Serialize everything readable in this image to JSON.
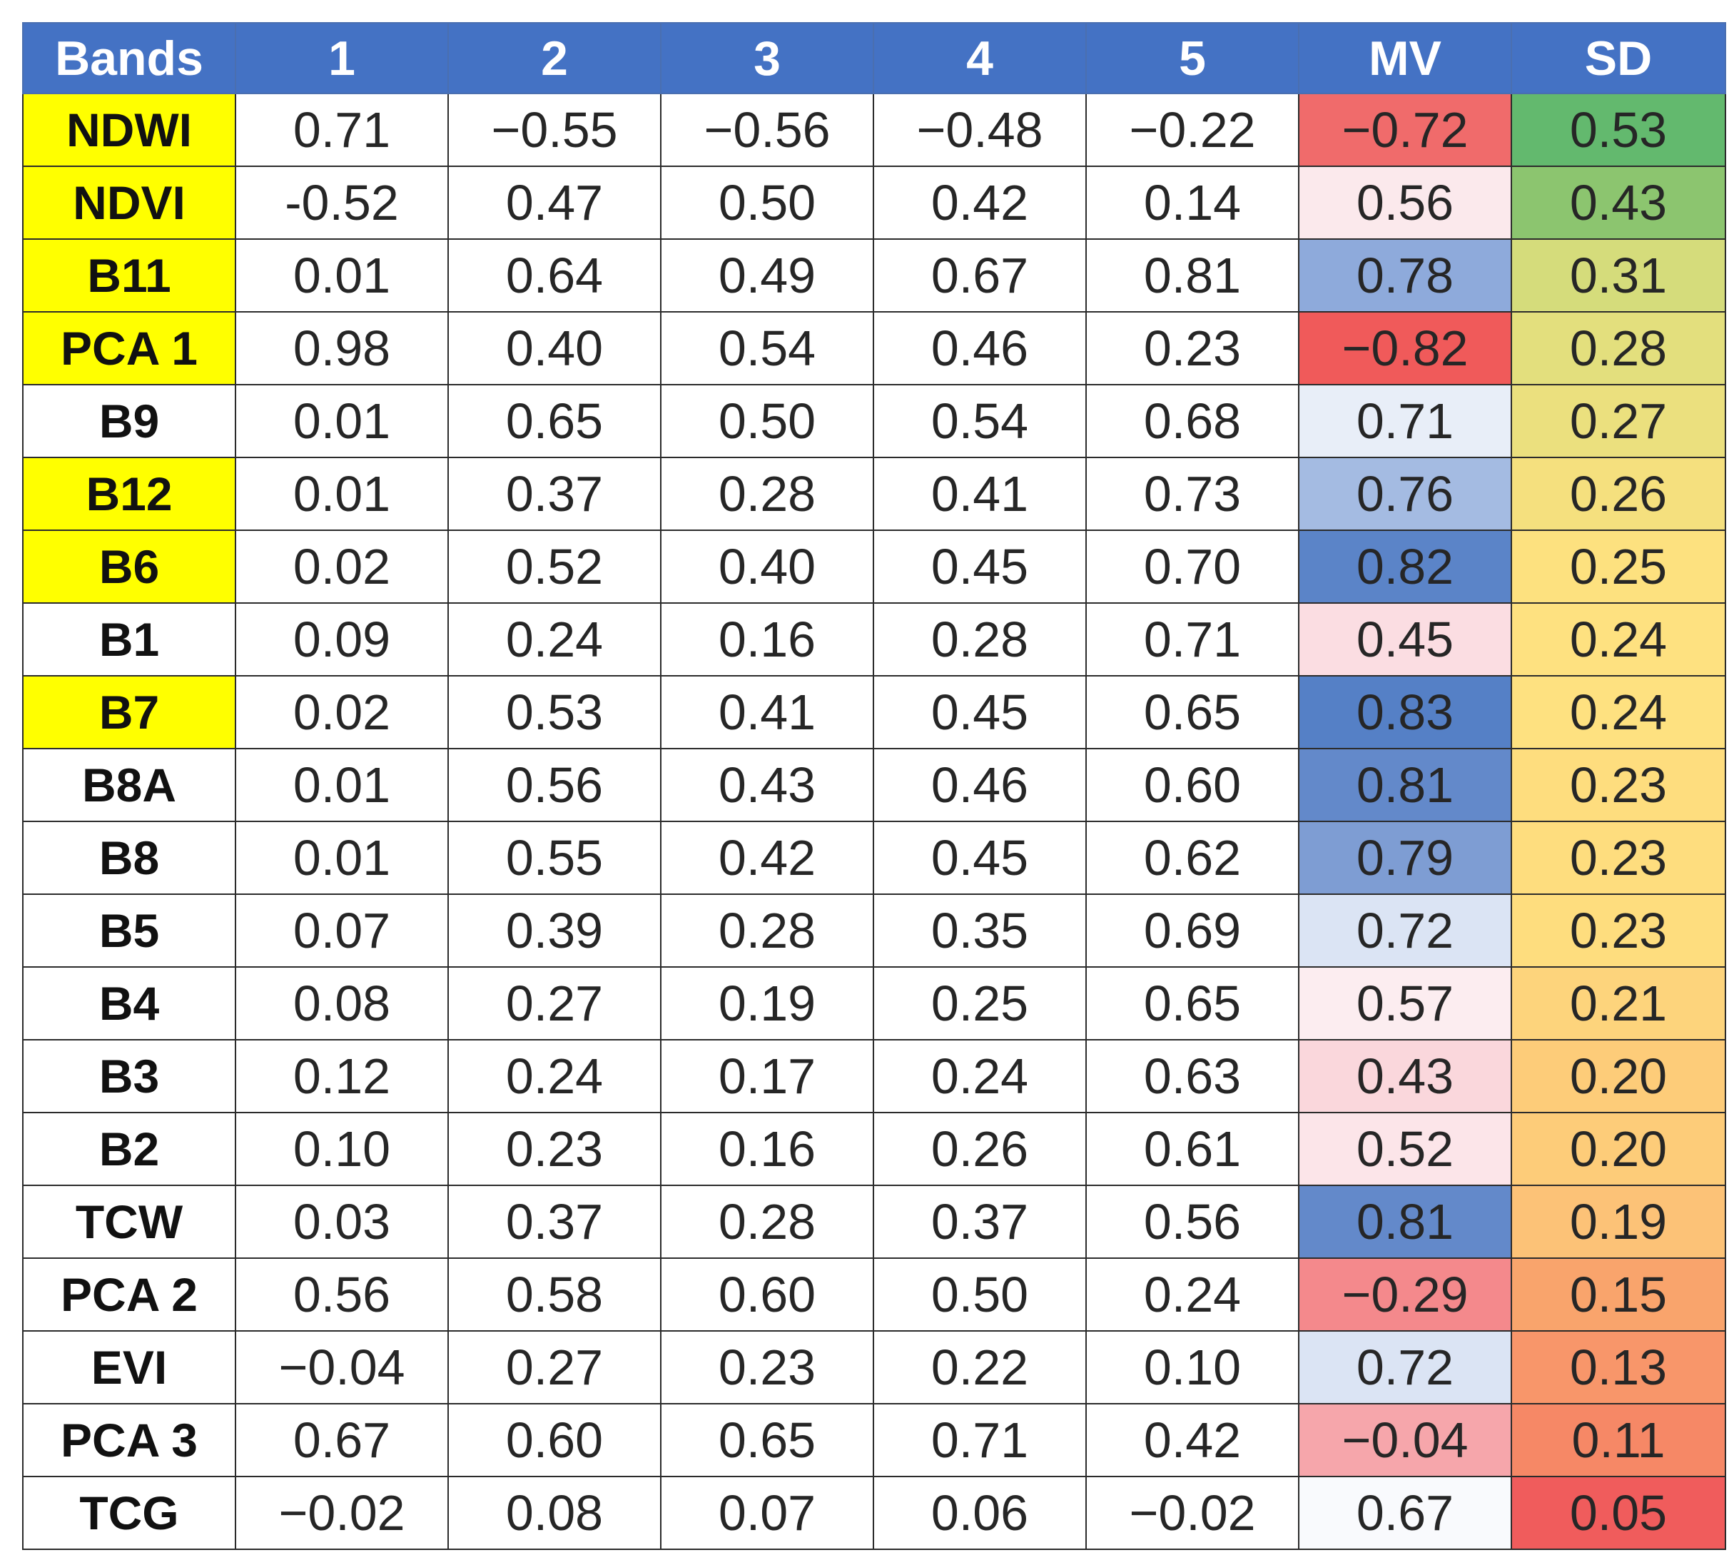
{
  "table": {
    "columns": [
      "Bands",
      "1",
      "2",
      "3",
      "4",
      "5",
      "MV",
      "SD"
    ],
    "rows": [
      {
        "band": "NDWI",
        "highlight": true,
        "values": [
          "0.71",
          "−0.55",
          "−0.56",
          "−0.48",
          "−0.22"
        ],
        "mv": "−0.72",
        "sd": "0.53",
        "mv_color": "#f06b6b",
        "sd_color": "#63b96e"
      },
      {
        "band": "NDVI",
        "highlight": true,
        "values": [
          "-0.52",
          "0.47",
          "0.50",
          "0.42",
          "0.14"
        ],
        "mv": "0.56",
        "sd": "0.43",
        "mv_color": "#fbe9ec",
        "sd_color": "#8cc56f"
      },
      {
        "band": "B11",
        "highlight": true,
        "values": [
          "0.01",
          "0.64",
          "0.49",
          "0.67",
          "0.81"
        ],
        "mv": "0.78",
        "sd": "0.31",
        "mv_color": "#8eaadb",
        "sd_color": "#d5dc7b"
      },
      {
        "band": "PCA 1",
        "highlight": true,
        "values": [
          "0.98",
          "0.40",
          "0.54",
          "0.46",
          "0.23"
        ],
        "mv": "−0.82",
        "sd": "0.28",
        "mv_color": "#f05a5a",
        "sd_color": "#e3df7d"
      },
      {
        "band": "B9",
        "highlight": false,
        "values": [
          "0.01",
          "0.65",
          "0.50",
          "0.54",
          "0.68"
        ],
        "mv": "0.71",
        "sd": "0.27",
        "mv_color": "#e8eef8",
        "sd_color": "#ebe07e"
      },
      {
        "band": "B12",
        "highlight": true,
        "values": [
          "0.01",
          "0.37",
          "0.28",
          "0.41",
          "0.73"
        ],
        "mv": "0.76",
        "sd": "0.26",
        "mv_color": "#a4bbe2",
        "sd_color": "#f5e07e"
      },
      {
        "band": "B6",
        "highlight": true,
        "values": [
          "0.02",
          "0.52",
          "0.40",
          "0.45",
          "0.70"
        ],
        "mv": "0.82",
        "sd": "0.25",
        "mv_color": "#5b84c8",
        "sd_color": "#fde17f"
      },
      {
        "band": "B1",
        "highlight": false,
        "values": [
          "0.09",
          "0.24",
          "0.16",
          "0.28",
          "0.71"
        ],
        "mv": "0.45",
        "sd": "0.24",
        "mv_color": "#fbdde2",
        "sd_color": "#fee180"
      },
      {
        "band": "B7",
        "highlight": true,
        "values": [
          "0.02",
          "0.53",
          "0.41",
          "0.45",
          "0.65"
        ],
        "mv": "0.83",
        "sd": "0.24",
        "mv_color": "#5580c6",
        "sd_color": "#fee180"
      },
      {
        "band": "B8A",
        "highlight": false,
        "values": [
          "0.01",
          "0.56",
          "0.43",
          "0.46",
          "0.60"
        ],
        "mv": "0.81",
        "sd": "0.23",
        "mv_color": "#6389ca",
        "sd_color": "#fedd7e"
      },
      {
        "band": "B8",
        "highlight": false,
        "values": [
          "0.01",
          "0.55",
          "0.42",
          "0.45",
          "0.62"
        ],
        "mv": "0.79",
        "sd": "0.23",
        "mv_color": "#7e9dd3",
        "sd_color": "#fedd7e"
      },
      {
        "band": "B5",
        "highlight": false,
        "values": [
          "0.07",
          "0.39",
          "0.28",
          "0.35",
          "0.69"
        ],
        "mv": "0.72",
        "sd": "0.23",
        "mv_color": "#dbe4f4",
        "sd_color": "#fedd7e"
      },
      {
        "band": "B4",
        "highlight": false,
        "values": [
          "0.08",
          "0.27",
          "0.19",
          "0.25",
          "0.65"
        ],
        "mv": "0.57",
        "sd": "0.21",
        "mv_color": "#fcedf0",
        "sd_color": "#fdd47c"
      },
      {
        "band": "B3",
        "highlight": false,
        "values": [
          "0.12",
          "0.24",
          "0.17",
          "0.24",
          "0.63"
        ],
        "mv": "0.43",
        "sd": "0.20",
        "mv_color": "#fad7dc",
        "sd_color": "#fdcc79"
      },
      {
        "band": "B2",
        "highlight": false,
        "values": [
          "0.10",
          "0.23",
          "0.16",
          "0.26",
          "0.61"
        ],
        "mv": "0.52",
        "sd": "0.20",
        "mv_color": "#fce5e9",
        "sd_color": "#fdcc79"
      },
      {
        "band": "TCW",
        "highlight": false,
        "values": [
          "0.03",
          "0.37",
          "0.28",
          "0.37",
          "0.56"
        ],
        "mv": "0.81",
        "sd": "0.19",
        "mv_color": "#6389ca",
        "sd_color": "#fcc277"
      },
      {
        "band": "PCA 2",
        "highlight": false,
        "values": [
          "0.56",
          "0.58",
          "0.60",
          "0.50",
          "0.24"
        ],
        "mv": "−0.29",
        "sd": "0.15",
        "mv_color": "#f4898c",
        "sd_color": "#f9a46c"
      },
      {
        "band": "EVI",
        "highlight": false,
        "values": [
          "−0.04",
          "0.27",
          "0.23",
          "0.22",
          "0.10"
        ],
        "mv": "0.72",
        "sd": "0.13",
        "mv_color": "#dbe4f4",
        "sd_color": "#f8966a"
      },
      {
        "band": "PCA 3",
        "highlight": false,
        "values": [
          "0.67",
          "0.60",
          "0.65",
          "0.71",
          "0.42"
        ],
        "mv": "−0.04",
        "sd": "0.11",
        "mv_color": "#f6a6ab",
        "sd_color": "#f68866"
      },
      {
        "band": "TCG",
        "highlight": false,
        "values": [
          "−0.02",
          "0.08",
          "0.07",
          "0.06",
          "−0.02"
        ],
        "mv": "0.67",
        "sd": "0.05",
        "mv_color": "#f9fafd",
        "sd_color": "#f05c5c"
      }
    ]
  }
}
